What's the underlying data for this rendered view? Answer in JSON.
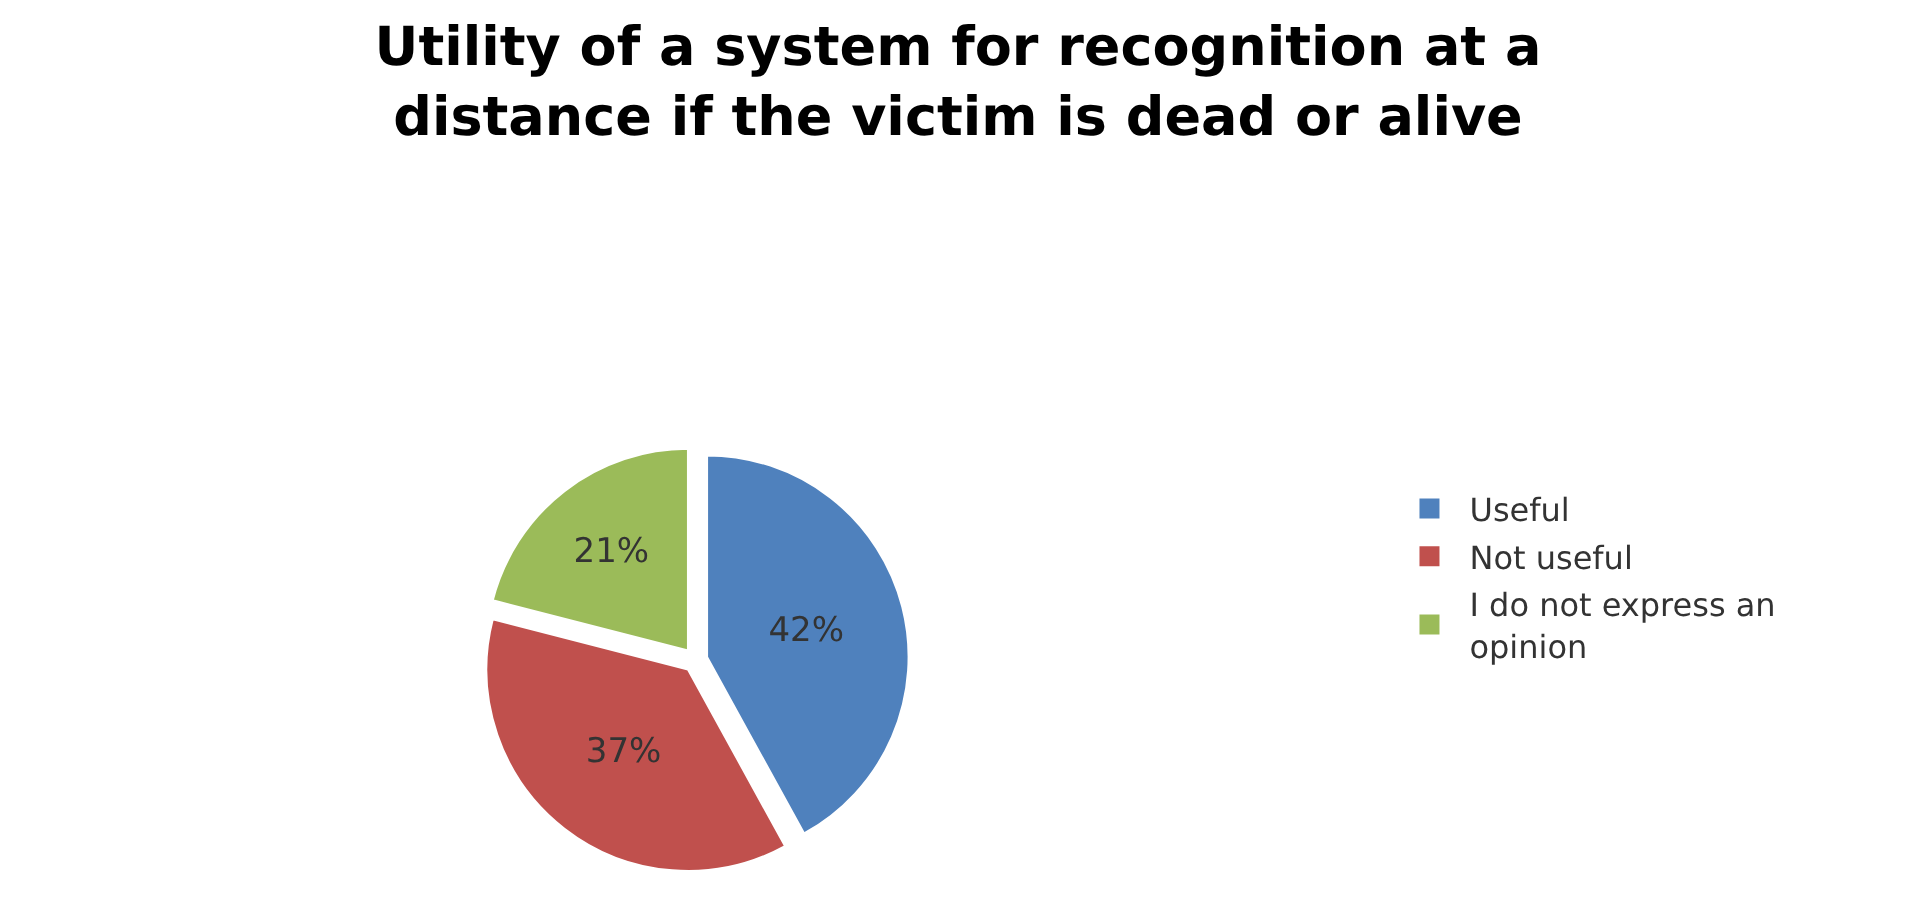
{
  "chart_data": {
    "type": "pie",
    "title": "Utility of a system for recognition at a distance if the victim is dead or alive",
    "categories": [
      "Useful",
      "Not useful",
      "I do not express an opinion"
    ],
    "values": [
      42,
      37,
      21
    ],
    "colors": [
      "#4f81bd",
      "#c0504d",
      "#9bbb59"
    ],
    "value_labels": [
      "42%",
      "37%",
      "21%"
    ],
    "legend": "right"
  }
}
